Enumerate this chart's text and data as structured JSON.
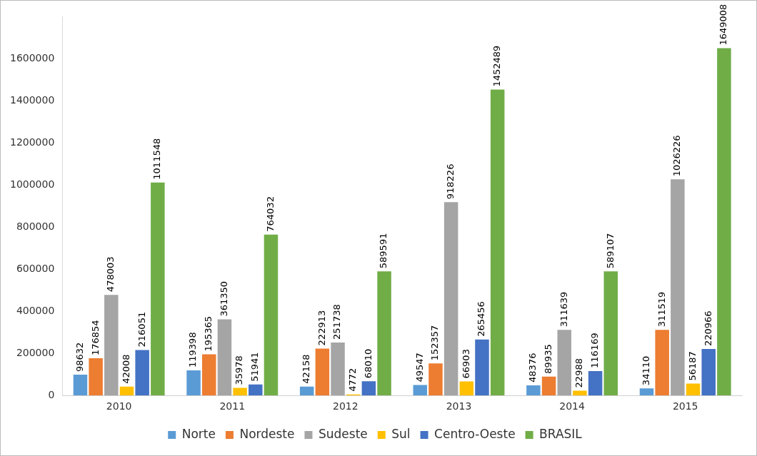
{
  "chart_data": {
    "type": "bar",
    "categories": [
      "2010",
      "2011",
      "2012",
      "2013",
      "2014",
      "2015"
    ],
    "series": [
      {
        "name": "Norte",
        "color": "#5b9bd5",
        "values": [
          98632,
          119398,
          42158,
          49547,
          48376,
          34110
        ]
      },
      {
        "name": "Nordeste",
        "color": "#ed7d31",
        "values": [
          176854,
          195365,
          222913,
          152357,
          89935,
          311519
        ]
      },
      {
        "name": "Sudeste",
        "color": "#a5a5a5",
        "values": [
          478003,
          361350,
          251738,
          918226,
          311639,
          1026226
        ]
      },
      {
        "name": "Sul",
        "color": "#ffc000",
        "values": [
          42008,
          35978,
          4772,
          66903,
          22988,
          56187
        ]
      },
      {
        "name": "Centro-Oeste",
        "color": "#4472c4",
        "values": [
          216051,
          51941,
          68010,
          265456,
          116169,
          220966
        ]
      },
      {
        "name": "BRASIL",
        "color": "#70ad47",
        "values": [
          1011548,
          764032,
          589591,
          1452489,
          589107,
          1649008
        ]
      }
    ],
    "ylim": [
      0,
      1800000
    ],
    "yticks": [
      0,
      200000,
      400000,
      600000,
      800000,
      1000000,
      1200000,
      1400000,
      1600000
    ],
    "grid": false,
    "legend": "bottom",
    "data_labels": true
  }
}
